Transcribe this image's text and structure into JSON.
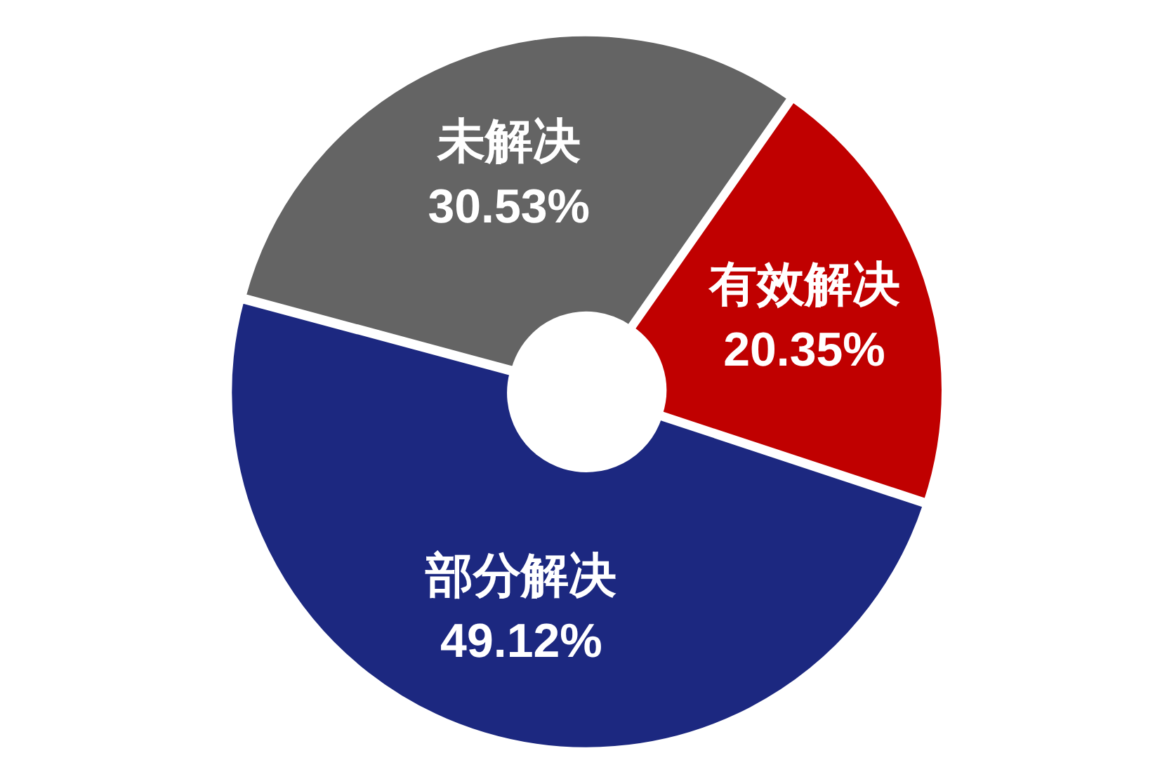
{
  "chart_data": {
    "type": "donut",
    "categories": [
      "有效解决",
      "部分解决",
      "未解决"
    ],
    "values": [
      20.35,
      49.12,
      30.53
    ],
    "colors": [
      "#c00000",
      "#1c2880",
      "#646464"
    ],
    "value_labels": [
      "20.35%",
      "49.12%",
      "30.53%"
    ],
    "legend": false
  }
}
